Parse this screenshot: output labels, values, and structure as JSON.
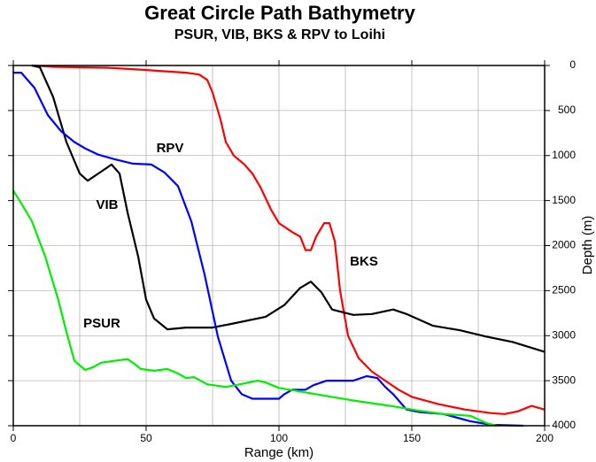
{
  "chart_data": {
    "type": "line",
    "title": "Great Circle Path Bathymetry",
    "subtitle": "PSUR, VIB, BKS & RPV to Loihi",
    "x_label": "Range (km)",
    "y_label": "Depth (m)",
    "xlim": [
      0,
      200
    ],
    "xticks": [
      0,
      50,
      100,
      150,
      200
    ],
    "xgrid": [
      0,
      25,
      50,
      75,
      100,
      125,
      150,
      175,
      200
    ],
    "ylim": [
      0,
      4000
    ],
    "yticks": [
      0,
      500,
      1000,
      1500,
      2000,
      2500,
      3000,
      3500,
      4000
    ],
    "y_reversed": true,
    "y_axis_side": "right",
    "grid": true,
    "series": [
      {
        "name": "BKS",
        "color": "#ff0000",
        "x": [
          7,
          15,
          25,
          35,
          45,
          55,
          65,
          70,
          73,
          75,
          78,
          80,
          83,
          87,
          90,
          93,
          97,
          100,
          105,
          108,
          110,
          112,
          114,
          117,
          119,
          121,
          123,
          126,
          130,
          135,
          140,
          145,
          150,
          160,
          170,
          180,
          185,
          190,
          195,
          200
        ],
        "values": [
          0,
          15,
          20,
          25,
          40,
          60,
          80,
          100,
          160,
          300,
          600,
          850,
          1000,
          1100,
          1200,
          1350,
          1600,
          1750,
          1850,
          1900,
          2050,
          2050,
          1900,
          1750,
          1750,
          1950,
          2500,
          3000,
          3250,
          3400,
          3500,
          3600,
          3680,
          3760,
          3820,
          3860,
          3870,
          3840,
          3780,
          3820
        ]
      },
      {
        "name": "VIB",
        "color": "#000000",
        "x": [
          7,
          10,
          15,
          20,
          25,
          28,
          32,
          37,
          40,
          43,
          47,
          50,
          53,
          58,
          65,
          75,
          82,
          95,
          102,
          108,
          112,
          116,
          120,
          128,
          135,
          143,
          148,
          158,
          168,
          178,
          188,
          200
        ],
        "values": [
          0,
          20,
          350,
          850,
          1200,
          1280,
          1200,
          1100,
          1200,
          1630,
          2120,
          2600,
          2810,
          2930,
          2910,
          2910,
          2870,
          2790,
          2660,
          2470,
          2400,
          2520,
          2710,
          2770,
          2760,
          2710,
          2760,
          2890,
          2940,
          3010,
          3070,
          3180
        ]
      },
      {
        "name": "RPV",
        "color": "#0000ff",
        "x": [
          0,
          3,
          8,
          13,
          18,
          23,
          27,
          32,
          38,
          45,
          52,
          57,
          62,
          67,
          72,
          77,
          82,
          86,
          90,
          95,
          100,
          102,
          105,
          110,
          113,
          118,
          123,
          128,
          133,
          137,
          140,
          143,
          148,
          153,
          162,
          172,
          180,
          192
        ],
        "values": [
          80,
          80,
          250,
          550,
          730,
          850,
          920,
          990,
          1040,
          1090,
          1100,
          1190,
          1340,
          1730,
          2320,
          3010,
          3500,
          3650,
          3700,
          3700,
          3700,
          3650,
          3600,
          3600,
          3550,
          3500,
          3500,
          3500,
          3450,
          3470,
          3570,
          3650,
          3820,
          3850,
          3870,
          3950,
          3990,
          4000
        ]
      },
      {
        "name": "PSUR",
        "color": "#00ee00",
        "x": [
          0,
          3,
          7,
          12,
          17,
          20,
          23,
          27,
          30,
          33,
          38,
          43,
          45,
          48,
          53,
          58,
          62,
          65,
          68,
          73,
          80,
          87,
          92,
          95,
          100,
          108,
          118,
          128,
          142,
          152,
          162,
          172,
          178,
          182
        ],
        "values": [
          1390,
          1530,
          1730,
          2120,
          2610,
          2960,
          3280,
          3380,
          3350,
          3300,
          3280,
          3260,
          3300,
          3370,
          3390,
          3370,
          3420,
          3470,
          3460,
          3540,
          3570,
          3530,
          3500,
          3520,
          3580,
          3620,
          3670,
          3720,
          3780,
          3830,
          3870,
          3890,
          3970,
          4000
        ]
      }
    ]
  }
}
